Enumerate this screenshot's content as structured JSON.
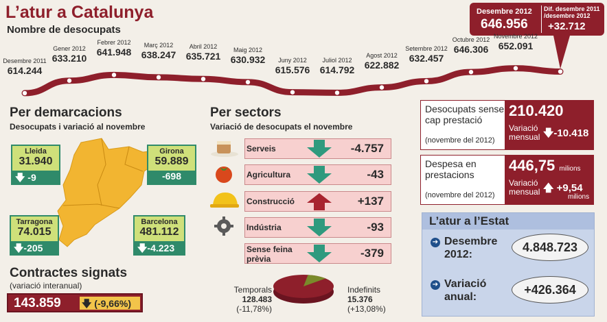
{
  "header": {
    "title": "L’atur a Catalunya",
    "subtitle": "Nombre de desocupats"
  },
  "callout": {
    "month_label": "Desembre 2012",
    "month_value": "646.956",
    "diff_label_1": "Dif. desembre 2011",
    "diff_label_2": "/desembre 2012",
    "diff_value": "+32.712"
  },
  "timeline": {
    "points": [
      {
        "month": "Desembre 2011",
        "value": "614.244"
      },
      {
        "month": "Gener 2012",
        "value": "633.210"
      },
      {
        "month": "Febrer 2012",
        "value": "641.948"
      },
      {
        "month": "Març 2012",
        "value": "638.247"
      },
      {
        "month": "Abril 2012",
        "value": "635.721"
      },
      {
        "month": "Maig 2012",
        "value": "630.932"
      },
      {
        "month": "Juny 2012",
        "value": "615.576"
      },
      {
        "month": "Juliol 2012",
        "value": "614.792"
      },
      {
        "month": "Agost 2012",
        "value": "622.882"
      },
      {
        "month": "Setembre 2012",
        "value": "632.457"
      },
      {
        "month": "Octubre 2012",
        "value": "646.306"
      },
      {
        "month": "Novembre 2012",
        "value": "652.091"
      }
    ]
  },
  "chart_data": {
    "type": "line",
    "x": [
      "Desembre 2011",
      "Gener 2012",
      "Febrer 2012",
      "Març 2012",
      "Abril 2012",
      "Maig 2012",
      "Juny 2012",
      "Juliol 2012",
      "Agost 2012",
      "Setembre 2012",
      "Octubre 2012",
      "Novembre 2012",
      "Desembre 2012"
    ],
    "values": [
      614244,
      633210,
      641948,
      638247,
      635721,
      630932,
      615576,
      614792,
      622882,
      632457,
      646306,
      652091,
      646956
    ],
    "title": "L’atur a Catalunya",
    "ylabel": "Nombre de desocupats",
    "grid": false
  },
  "demarcacions": {
    "heading": "Per demarcacions",
    "subheading": "Desocupats i variació al novembre",
    "items": [
      {
        "name": "Lleida",
        "value": "31.940",
        "change": "-9"
      },
      {
        "name": "Girona",
        "value": "59.889",
        "change": "-698"
      },
      {
        "name": "Tarragona",
        "value": "74.015",
        "change": "-205"
      },
      {
        "name": "Barcelona",
        "value": "481.112",
        "change": "-4.223"
      }
    ],
    "colors": {
      "map": "#f2b531",
      "box_top": "#cfe07a",
      "box_bottom": "#2f8a6a"
    }
  },
  "sectors": {
    "heading": "Per sectors",
    "subheading": "Variació de desocupats el novembre",
    "items": [
      {
        "name": "Serveis",
        "value": "-4.757",
        "direction": "down",
        "icon": "coffee-cup-icon"
      },
      {
        "name": "Agricultura",
        "value": "-43",
        "direction": "down",
        "icon": "tomato-icon"
      },
      {
        "name": "Construcció",
        "value": "+137",
        "direction": "up",
        "icon": "hard-hat-icon"
      },
      {
        "name": "Indústria",
        "value": "-93",
        "direction": "down",
        "icon": "gear-icon"
      },
      {
        "name": "Sense feina",
        "name_line2": "prèvia",
        "value": "-379",
        "direction": "down",
        "icon": "none"
      }
    ],
    "colors": {
      "row": "#f7d0cf",
      "down_arrow": "#2f9a7e",
      "up_arrow": "#a8242f"
    }
  },
  "contracts": {
    "heading": "Contractes signats",
    "subheading": "(variació interanual)",
    "value": "143.859",
    "change": "(-9,66%)",
    "pie": {
      "temporals_label": "Temporals",
      "temporals_value": "128.483",
      "temporals_change": "(-11,78%)",
      "indefinits_label": "Indefinits",
      "indefinits_value": "15.376",
      "indefinits_change": "(+13,08%)",
      "temporals_share": 0.893,
      "indefinits_share": 0.107
    }
  },
  "prestacio": {
    "label": "Desocupats sense cap prestació",
    "note": "(novembre del 2012)",
    "value": "210.420",
    "monthly_label_1": "Variació",
    "monthly_label_2": "mensual",
    "monthly_value": "-10.418"
  },
  "despesa": {
    "label": "Despesa en prestacions",
    "note": "(novembre del 2012)",
    "value": "446,75",
    "unit": "milions",
    "monthly_label_1": "Variació",
    "monthly_label_2": "mensual",
    "monthly_value": "+9,54",
    "monthly_unit": "milions"
  },
  "estat": {
    "heading": "L’atur a l’Estat",
    "row1_label_1": "Desembre",
    "row1_label_2": "2012:",
    "row1_value": "4.848.723",
    "row2_label_1": "Variació",
    "row2_label_2": "anual:",
    "row2_value": "+426.364"
  }
}
